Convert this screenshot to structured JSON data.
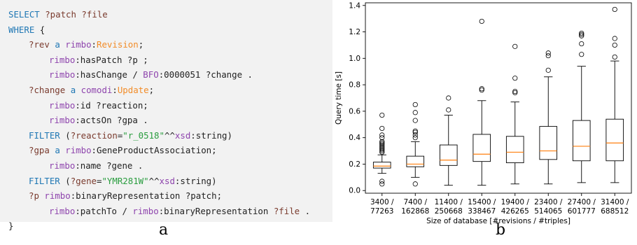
{
  "panel_a": {
    "label": "a",
    "code_lines": [
      {
        "indent": 0,
        "tokens": [
          {
            "t": "SELECT ",
            "c": "kw"
          },
          {
            "t": "?patch ?file",
            "c": "var"
          }
        ]
      },
      {
        "indent": 0,
        "tokens": [
          {
            "t": "WHERE ",
            "c": "kw"
          },
          {
            "t": "{",
            "c": "pl"
          }
        ]
      },
      {
        "indent": 1,
        "tokens": [
          {
            "t": "?rev ",
            "c": "var"
          },
          {
            "t": "a ",
            "c": "kw"
          },
          {
            "t": "rimbo",
            "c": "pfx"
          },
          {
            "t": ":",
            "c": "pl"
          },
          {
            "t": "Revision",
            "c": "cls"
          },
          {
            "t": ";",
            "c": "pl"
          }
        ]
      },
      {
        "indent": 2,
        "tokens": [
          {
            "t": "rimbo",
            "c": "pfx"
          },
          {
            "t": ":hasPatch ?p ;",
            "c": "pl"
          }
        ]
      },
      {
        "indent": 2,
        "tokens": [
          {
            "t": "rimbo",
            "c": "pfx"
          },
          {
            "t": ":hasChange / ",
            "c": "pl"
          },
          {
            "t": "BFO",
            "c": "pfx"
          },
          {
            "t": ":0000051 ?change .",
            "c": "pl"
          }
        ]
      },
      {
        "indent": 1,
        "tokens": [
          {
            "t": "?change ",
            "c": "var"
          },
          {
            "t": "a ",
            "c": "kw"
          },
          {
            "t": "comodi",
            "c": "pfx"
          },
          {
            "t": ":",
            "c": "pl"
          },
          {
            "t": "Update",
            "c": "cls"
          },
          {
            "t": ";",
            "c": "pl"
          }
        ]
      },
      {
        "indent": 2,
        "tokens": [
          {
            "t": "rimbo",
            "c": "pfx"
          },
          {
            "t": ":id ?reaction;",
            "c": "pl"
          }
        ]
      },
      {
        "indent": 2,
        "tokens": [
          {
            "t": "rimbo",
            "c": "pfx"
          },
          {
            "t": ":actsOn ?gpa .",
            "c": "pl"
          }
        ]
      },
      {
        "indent": 1,
        "tokens": [
          {
            "t": "FILTER ",
            "c": "kw"
          },
          {
            "t": "(",
            "c": "pl"
          },
          {
            "t": "?reaction",
            "c": "var"
          },
          {
            "t": "=",
            "c": "pl"
          },
          {
            "t": "\"r_0518\"",
            "c": "str"
          },
          {
            "t": "^^",
            "c": "pl"
          },
          {
            "t": "xsd",
            "c": "pfx"
          },
          {
            "t": ":string)",
            "c": "pl"
          }
        ]
      },
      {
        "indent": 1,
        "tokens": [
          {
            "t": "?gpa ",
            "c": "var"
          },
          {
            "t": "a ",
            "c": "kw"
          },
          {
            "t": "rimbo",
            "c": "pfx"
          },
          {
            "t": ":GeneProductAssociation;",
            "c": "pl"
          }
        ]
      },
      {
        "indent": 2,
        "tokens": [
          {
            "t": "rimbo",
            "c": "pfx"
          },
          {
            "t": ":name ?gene .",
            "c": "pl"
          }
        ]
      },
      {
        "indent": 1,
        "tokens": [
          {
            "t": "FILTER ",
            "c": "kw"
          },
          {
            "t": "(",
            "c": "pl"
          },
          {
            "t": "?gene",
            "c": "var"
          },
          {
            "t": "=",
            "c": "pl"
          },
          {
            "t": "\"YMR281W\"",
            "c": "str"
          },
          {
            "t": "^^",
            "c": "pl"
          },
          {
            "t": "xsd",
            "c": "pfx"
          },
          {
            "t": ":string)",
            "c": "pl"
          }
        ]
      },
      {
        "indent": 1,
        "tokens": [
          {
            "t": "?p ",
            "c": "var"
          },
          {
            "t": "rimbo",
            "c": "pfx"
          },
          {
            "t": ":binaryRepresentation ?patch;",
            "c": "pl"
          }
        ]
      },
      {
        "indent": 2,
        "tokens": [
          {
            "t": "rimbo",
            "c": "pfx"
          },
          {
            "t": ":patchTo / ",
            "c": "pl"
          },
          {
            "t": "rimbo",
            "c": "pfx"
          },
          {
            "t": ":binaryRepresentation ",
            "c": "pl"
          },
          {
            "t": "?file",
            "c": "var"
          },
          {
            "t": " .",
            "c": "pl"
          }
        ]
      },
      {
        "indent": 0,
        "tokens": [
          {
            "t": "}",
            "c": "pl"
          }
        ]
      }
    ]
  },
  "panel_b": {
    "label": "b"
  },
  "colors": {
    "keyword": "#1f77b4",
    "variable": "#7a3b2e",
    "prefix": "#8e44ad",
    "class": "#f28c28",
    "string": "#2a9d3f",
    "median": "#ff7f0e",
    "code_background": "#f2f2f2"
  },
  "chart_data": {
    "type": "box",
    "xlabel": "Size of database [#revisions / #triples]",
    "ylabel": "Query time [s]",
    "ylim": [
      -0.02,
      1.42
    ],
    "yticks": [
      0.0,
      0.2,
      0.4,
      0.6,
      0.8,
      1.0,
      1.2,
      1.4
    ],
    "ytick_labels": [
      "0.0",
      "0.2",
      "0.4",
      "0.6",
      "0.8",
      "1.0",
      "1.2",
      "1.4"
    ],
    "grid": false,
    "categories": [
      [
        "3400 /",
        "77263"
      ],
      [
        "7400 /",
        "162868"
      ],
      [
        "11400 /",
        "250668"
      ],
      [
        "15400 /",
        "338467"
      ],
      [
        "19400 /",
        "426265"
      ],
      [
        "23400 /",
        "514065"
      ],
      [
        "27400 /",
        "601777"
      ],
      [
        "31400 /",
        "688512"
      ]
    ],
    "boxes": [
      {
        "whislo": 0.13,
        "q1": 0.17,
        "med": 0.185,
        "q3": 0.215,
        "whishi": 0.27,
        "fliers": [
          0.05,
          0.07,
          0.29,
          0.3,
          0.31,
          0.32,
          0.33,
          0.34,
          0.35,
          0.36,
          0.37,
          0.4,
          0.42,
          0.47,
          0.57
        ]
      },
      {
        "whislo": 0.1,
        "q1": 0.18,
        "med": 0.2,
        "q3": 0.26,
        "whishi": 0.37,
        "fliers": [
          0.05,
          0.4,
          0.42,
          0.44,
          0.45,
          0.53,
          0.59,
          0.65
        ]
      },
      {
        "whislo": 0.04,
        "q1": 0.19,
        "med": 0.23,
        "q3": 0.345,
        "whishi": 0.57,
        "fliers": [
          0.61,
          0.7
        ]
      },
      {
        "whislo": 0.04,
        "q1": 0.22,
        "med": 0.275,
        "q3": 0.425,
        "whishi": 0.68,
        "fliers": [
          0.76,
          0.77,
          1.28
        ]
      },
      {
        "whislo": 0.05,
        "q1": 0.21,
        "med": 0.29,
        "q3": 0.41,
        "whishi": 0.67,
        "fliers": [
          0.74,
          0.75,
          0.85,
          1.09
        ]
      },
      {
        "whislo": 0.05,
        "q1": 0.235,
        "med": 0.3,
        "q3": 0.485,
        "whishi": 0.86,
        "fliers": [
          0.91,
          1.02,
          1.04
        ]
      },
      {
        "whislo": 0.06,
        "q1": 0.225,
        "med": 0.335,
        "q3": 0.53,
        "whishi": 0.94,
        "fliers": [
          1.03,
          1.11,
          1.17,
          1.18,
          1.19
        ]
      },
      {
        "whislo": 0.06,
        "q1": 0.225,
        "med": 0.36,
        "q3": 0.54,
        "whishi": 0.98,
        "fliers": [
          1.01,
          1.1,
          1.15,
          1.37
        ]
      }
    ]
  }
}
